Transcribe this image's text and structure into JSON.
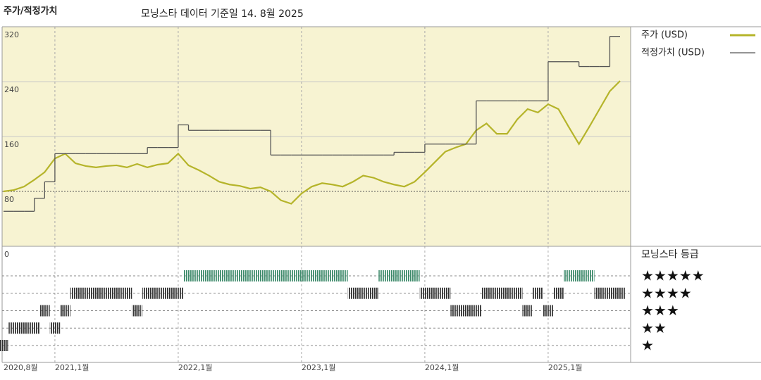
{
  "chart_data": [
    {
      "type": "line",
      "title": "주가/적정가치",
      "subtitle": "모닝스타 데이터 기준일 14. 8월 2025",
      "x": [
        "2020-08",
        "2020-09",
        "2020-10",
        "2020-11",
        "2020-12",
        "2021-01",
        "2021-02",
        "2021-03",
        "2021-04",
        "2021-05",
        "2021-06",
        "2021-07",
        "2021-08",
        "2021-09",
        "2021-10",
        "2021-11",
        "2021-12",
        "2022-01",
        "2022-02",
        "2022-03",
        "2022-04",
        "2022-05",
        "2022-06",
        "2022-07",
        "2022-08",
        "2022-09",
        "2022-10",
        "2022-11",
        "2022-12",
        "2023-01",
        "2023-02",
        "2023-03",
        "2023-04",
        "2023-05",
        "2023-06",
        "2023-07",
        "2023-08",
        "2023-09",
        "2023-10",
        "2023-11",
        "2023-12",
        "2024-01",
        "2024-02",
        "2024-03",
        "2024-04",
        "2024-05",
        "2024-06",
        "2024-07",
        "2024-08",
        "2024-09",
        "2024-10",
        "2024-11",
        "2024-12",
        "2025-01",
        "2025-02",
        "2025-03",
        "2025-04",
        "2025-05",
        "2025-06",
        "2025-07",
        "2025-08"
      ],
      "series": [
        {
          "name": "주가 (USD)",
          "color": "#b5b42a",
          "style": "line",
          "values": [
            80,
            82,
            87,
            97,
            108,
            128,
            135,
            121,
            117,
            115,
            117,
            118,
            115,
            120,
            115,
            119,
            121,
            135,
            118,
            111,
            103,
            94,
            90,
            88,
            84,
            86,
            80,
            67,
            62,
            77,
            87,
            92,
            90,
            87,
            94,
            103,
            100,
            94,
            90,
            87,
            94,
            108,
            123,
            138,
            144,
            149,
            169,
            179,
            164,
            164,
            185,
            200,
            195,
            207,
            200,
            174,
            149,
            174,
            200,
            226,
            241
          ]
        },
        {
          "name": "적정가치 (USD)",
          "color": "#555555",
          "style": "step",
          "values": [
            51,
            51,
            51,
            70,
            94,
            135,
            135,
            135,
            135,
            135,
            135,
            135,
            135,
            135,
            144,
            144,
            144,
            177,
            169,
            169,
            169,
            169,
            169,
            169,
            169,
            169,
            133,
            133,
            133,
            133,
            133,
            133,
            133,
            133,
            133,
            133,
            133,
            133,
            137,
            137,
            137,
            149,
            149,
            149,
            149,
            149,
            212,
            212,
            212,
            212,
            212,
            212,
            212,
            269,
            269,
            269,
            262,
            262,
            262,
            306,
            306
          ]
        }
      ],
      "xlim": [
        "2020-08",
        "2025-08"
      ],
      "xticks": [
        {
          "value": "2020-08",
          "label": "2020,8월"
        },
        {
          "value": "2021-01",
          "label": "2021,1월"
        },
        {
          "value": "2022-01",
          "label": "2022,1월"
        },
        {
          "value": "2023-01",
          "label": "2023,1월"
        },
        {
          "value": "2024-01",
          "label": "2024,1월"
        },
        {
          "value": "2025-01",
          "label": "2025,1월"
        }
      ],
      "ylim": [
        0,
        320
      ],
      "yticks": [
        0,
        80,
        160,
        240,
        320
      ],
      "grid": true,
      "background": "#f7f3d2",
      "legend": "right"
    },
    {
      "type": "rating",
      "title": "모닝스타 등급",
      "star_labels": [
        "★",
        "★★",
        "★★★",
        "★★★★",
        "★★★★★"
      ],
      "ratings": [
        1,
        2,
        2,
        2,
        3,
        2,
        3,
        4,
        4,
        4,
        4,
        4,
        4,
        3,
        4,
        4,
        4,
        4,
        5,
        5,
        5,
        5,
        5,
        5,
        5,
        5,
        5,
        5,
        5,
        5,
        5,
        5,
        5,
        5,
        4,
        4,
        4,
        5,
        5,
        5,
        5,
        4,
        4,
        4,
        3,
        3,
        3,
        4,
        4,
        4,
        4,
        3,
        4,
        3,
        4,
        5,
        5,
        5,
        4,
        4,
        4
      ],
      "color": "#333333",
      "top_color": "#3f8b6c"
    }
  ]
}
